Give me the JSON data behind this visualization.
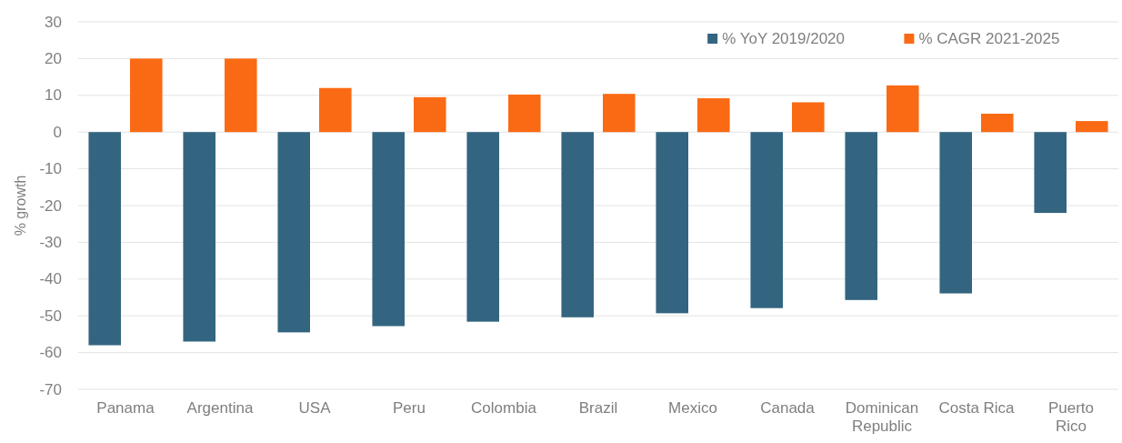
{
  "chart_data": {
    "type": "bar",
    "ylabel": "% growth",
    "categories": [
      "Panama",
      "Argentina",
      "USA",
      "Peru",
      "Colombia",
      "Brazil",
      "Mexico",
      "Canada",
      "Dominican Republic",
      "Costa Rica",
      "Puerto Rico"
    ],
    "series": [
      {
        "name": "% YoY 2019/2020",
        "color": "#336580",
        "values": [
          -58,
          -57,
          -54.5,
          -52.8,
          -51.6,
          -50.4,
          -49.3,
          -47.9,
          -45.7,
          -43.9,
          -22
        ]
      },
      {
        "name": "% CAGR 2021-2025",
        "color": "#fa6a14",
        "values": [
          20,
          20,
          12,
          9.5,
          10.2,
          10.4,
          9.2,
          8.1,
          12.7,
          5,
          3
        ]
      }
    ],
    "ylim": [
      -70,
      30
    ],
    "yticks": [
      -70,
      -60,
      -50,
      -40,
      -30,
      -20,
      -10,
      0,
      10,
      20,
      30
    ],
    "grid": "y",
    "legend": "top right"
  }
}
